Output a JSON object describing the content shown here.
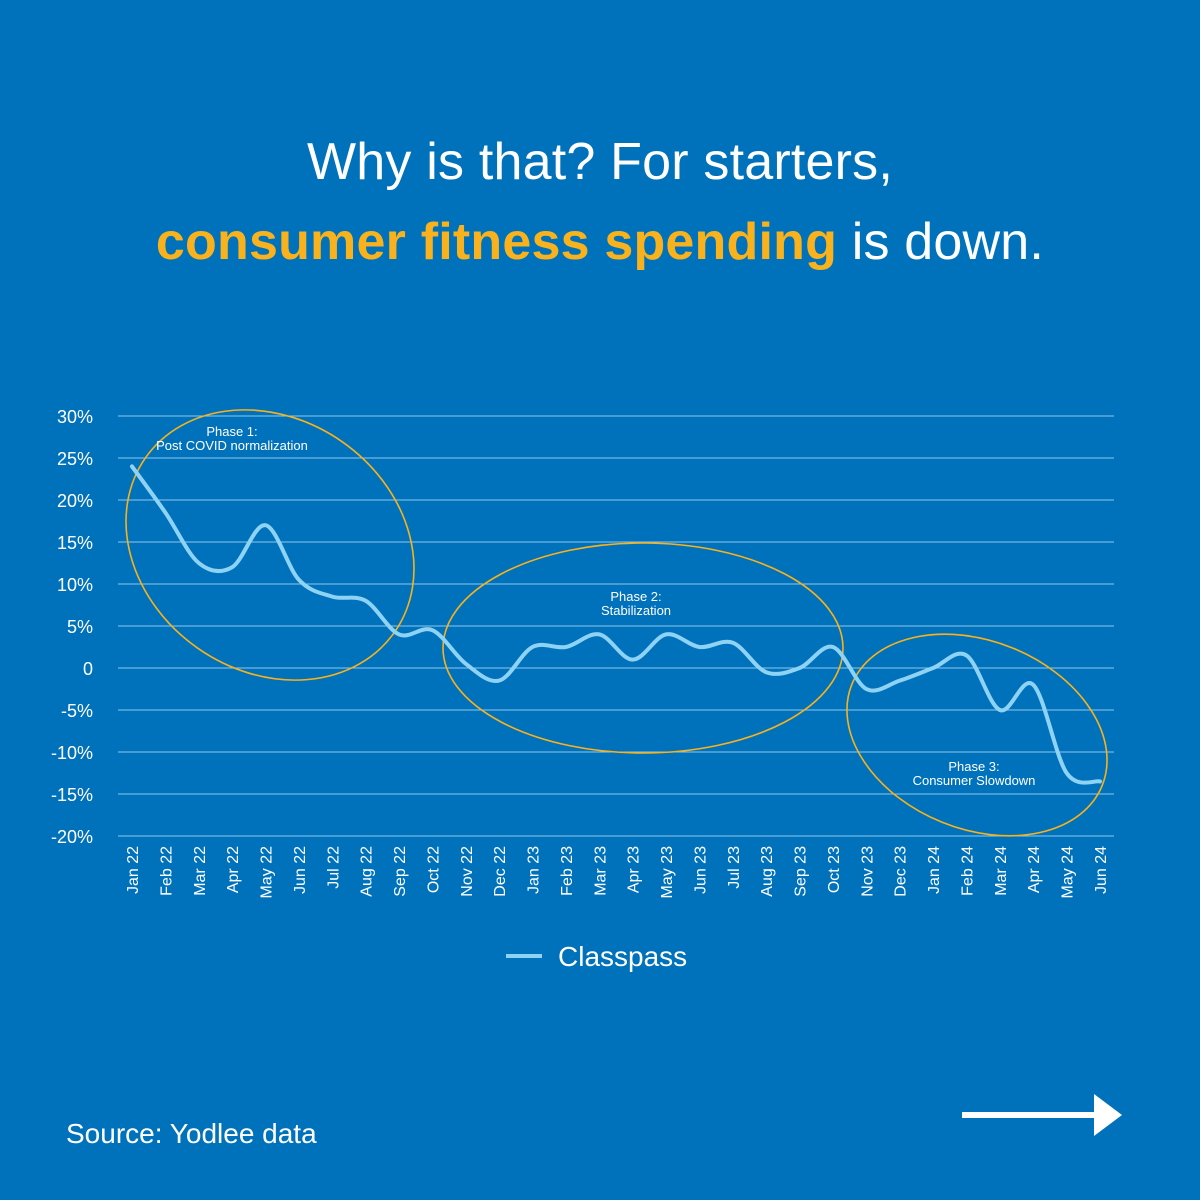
{
  "headline": {
    "line1": "Why is that? For starters,",
    "accent": "consumer fitness spending",
    "line2_rest": " is down."
  },
  "source": "Source: Yodlee data",
  "colors": {
    "background": "#0072bc",
    "accent": "#f9b21c",
    "line": "#8fd3f4",
    "grid": "#8ec5ea",
    "text": "#ffffff"
  },
  "chart_data": {
    "type": "line",
    "title": "",
    "xlabel": "",
    "ylabel": "",
    "ylim": [
      -20,
      30
    ],
    "yticks": [
      30,
      25,
      20,
      15,
      10,
      5,
      0,
      -5,
      -10,
      -15,
      -20
    ],
    "ytick_labels": [
      "30%",
      "25%",
      "20%",
      "15%",
      "10%",
      "5%",
      "0",
      "-5%",
      "-10%",
      "-15%",
      "-20%"
    ],
    "grid": true,
    "legend_position": "bottom-center",
    "categories": [
      "Jan 22",
      "Feb 22",
      "Mar 22",
      "Apr 22",
      "May 22",
      "Jun 22",
      "Jul 22",
      "Aug 22",
      "Sep 22",
      "Oct 22",
      "Nov 22",
      "Dec 22",
      "Jan 23",
      "Feb 23",
      "Mar 23",
      "Apr 23",
      "May 23",
      "Jun 23",
      "Jul 23",
      "Aug 23",
      "Sep 23",
      "Oct 23",
      "Nov 23",
      "Dec 23",
      "Jan 24",
      "Feb 24",
      "Mar 24",
      "Apr 24",
      "May 24",
      "Jun 24"
    ],
    "series": [
      {
        "name": "Classpass",
        "values": [
          24,
          18.5,
          12.5,
          12,
          17,
          10.5,
          8.5,
          8,
          4,
          4.5,
          0.5,
          -1.5,
          2.5,
          2.5,
          4,
          1,
          4,
          2.5,
          3,
          -0.5,
          0,
          2.5,
          -2.5,
          -1.5,
          0,
          1.5,
          -5,
          -2,
          -12.5,
          -13.5
        ]
      }
    ],
    "annotations": [
      {
        "line1": "Phase 1:",
        "line2": "Post COVID normalization",
        "from": "Jan 22",
        "to": "Sep 22"
      },
      {
        "line1": "Phase 2:",
        "line2": "Stabilization",
        "from": "Oct 22",
        "to": "Oct 23"
      },
      {
        "line1": "Phase 3:",
        "line2": "Consumer Slowdown",
        "from": "Nov 23",
        "to": "Jun 24"
      }
    ]
  }
}
